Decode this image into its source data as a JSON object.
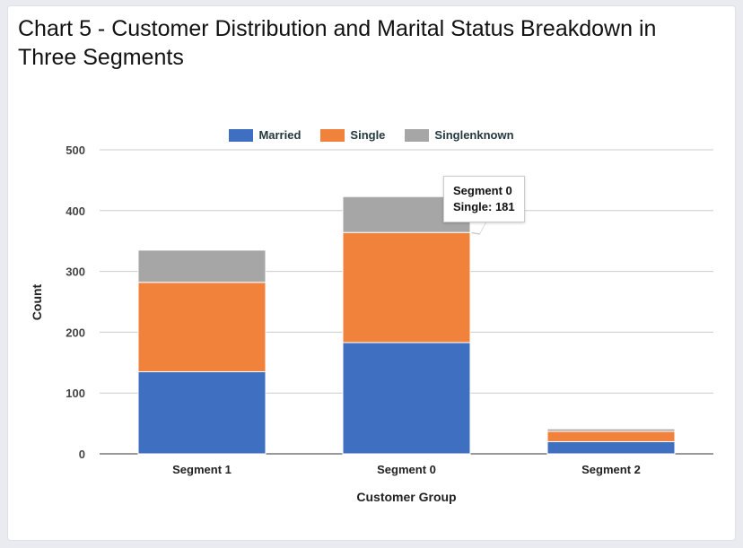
{
  "chart_data": {
    "type": "bar",
    "stacked": true,
    "title": "Chart 5 - Customer Distribution and Marital Status Breakdown in Three Segments",
    "xlabel": "Customer Group",
    "ylabel": "Count",
    "categories": [
      "Segment 1",
      "Segment 0",
      "Segment 2"
    ],
    "series": [
      {
        "name": "Married",
        "color": "#3f6fc0",
        "values": [
          135,
          183,
          20
        ]
      },
      {
        "name": "Single",
        "color": "#f0823c",
        "values": [
          147,
          181,
          17
        ]
      },
      {
        "name": "Singlenknown",
        "color": "#a6a6a6",
        "values": [
          53,
          59,
          4
        ]
      }
    ],
    "ylim": [
      0,
      500
    ],
    "yticks": [
      "0",
      "100",
      "200",
      "300",
      "400",
      "500"
    ],
    "grid": true,
    "legend_position": "top"
  },
  "tooltip": {
    "line1": "Segment 0",
    "line2": "Single: 181"
  }
}
